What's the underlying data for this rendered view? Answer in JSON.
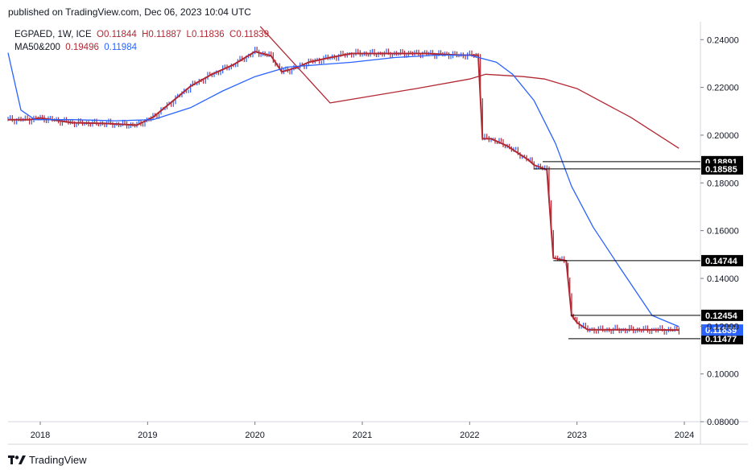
{
  "header": {
    "published": "published on TradingView.com, Dec 06, 2023 10:04 UTC"
  },
  "legend": {
    "symbol": "EGPAED, 1W, ICE",
    "open_label": "O",
    "open": "0.11844",
    "high_label": "H",
    "high": "0.11887",
    "low_label": "L",
    "low": "0.11836",
    "close_label": "C",
    "close": "0.11839",
    "ma_label": "MA50&200",
    "ma50": "0.19496",
    "ma200": "0.11984"
  },
  "footer": {
    "brand": "TradingView"
  },
  "colors": {
    "down": "#b22833",
    "up": "#2962ff",
    "ma50": "#b22833",
    "ma200": "#2962ff",
    "tag": "#000000",
    "last_tag": "#2962ff"
  },
  "chart_data": {
    "type": "line",
    "title": "EGPAED, 1W, ICE",
    "xlabel": "",
    "ylabel": "",
    "xlim": [
      2017.7,
      2024.15
    ],
    "ylim": [
      0.08,
      0.2475
    ],
    "x_ticks": [
      2018,
      2019,
      2020,
      2021,
      2022,
      2023,
      2024
    ],
    "x_tick_labels": [
      "2018",
      "2019",
      "2020",
      "2021",
      "2022",
      "2023",
      "2024"
    ],
    "y_ticks": [
      0.08,
      0.1,
      0.12,
      0.14,
      0.16,
      0.18,
      0.2,
      0.22,
      0.24
    ],
    "y_tick_labels": [
      "0.08000",
      "0.10000",
      "0.12000",
      "0.14000",
      "0.16000",
      "0.18000",
      "0.20000",
      "0.22000",
      "0.24000"
    ],
    "series": [
      {
        "name": "Price (weekly close)",
        "x": [
          2017.7,
          2017.9,
          2018.0,
          2018.3,
          2018.6,
          2018.9,
          2019.05,
          2019.2,
          2019.4,
          2019.6,
          2019.8,
          2020.0,
          2020.15,
          2020.25,
          2020.4,
          2020.5,
          2020.7,
          2020.9,
          2021.0,
          2021.3,
          2021.6,
          2021.9,
          2022.08,
          2022.12,
          2022.2,
          2022.35,
          2022.55,
          2022.6,
          2022.72,
          2022.78,
          2022.9,
          2022.95,
          2023.0,
          2023.1,
          2023.3,
          2023.6,
          2023.95
        ],
        "values": [
          0.2065,
          0.2065,
          0.2072,
          0.2052,
          0.2049,
          0.2042,
          0.2075,
          0.213,
          0.2205,
          0.2255,
          0.2295,
          0.235,
          0.2332,
          0.2265,
          0.2285,
          0.2305,
          0.2325,
          0.2342,
          0.2342,
          0.2342,
          0.2342,
          0.2335,
          0.2335,
          0.1985,
          0.1985,
          0.1955,
          0.1895,
          0.1875,
          0.1855,
          0.1485,
          0.1474,
          0.1245,
          0.1215,
          0.1185,
          0.1185,
          0.1185,
          0.1184
        ]
      },
      {
        "name": "MA50",
        "x": [
          2020.05,
          2020.7,
          2021.5,
          2022.0,
          2022.15,
          2022.5,
          2022.7,
          2023.0,
          2023.5,
          2023.95
        ],
        "values": [
          0.2455,
          0.2135,
          0.2195,
          0.2235,
          0.2255,
          0.2245,
          0.2235,
          0.2195,
          0.2075,
          0.1945
        ]
      },
      {
        "name": "MA200",
        "x": [
          2017.7,
          2017.82,
          2017.95,
          2018.3,
          2018.7,
          2019.05,
          2019.4,
          2019.7,
          2020.0,
          2020.3,
          2020.6,
          2020.9,
          2021.3,
          2021.7,
          2022.0,
          2022.25,
          2022.4,
          2022.6,
          2022.8,
          2022.95,
          2023.15,
          2023.4,
          2023.7,
          2023.95
        ],
        "values": [
          0.2345,
          0.2105,
          0.2065,
          0.2065,
          0.206,
          0.2065,
          0.2115,
          0.2185,
          0.2245,
          0.2285,
          0.2295,
          0.2305,
          0.2325,
          0.2335,
          0.2335,
          0.2305,
          0.2255,
          0.2145,
          0.1965,
          0.1785,
          0.1615,
          0.1445,
          0.1245,
          0.1198
        ]
      }
    ],
    "price_tags": [
      {
        "label": "0.18891",
        "value": 0.18891,
        "line_from": 2022.68
      },
      {
        "label": "0.18585",
        "value": 0.18585,
        "line_from": 2022.6
      },
      {
        "label": "0.14744",
        "value": 0.14744,
        "line_from": 2022.78
      },
      {
        "label": "0.12454",
        "value": 0.12454,
        "line_from": 2022.94
      },
      {
        "label": "0.11477",
        "value": 0.11477,
        "line_from": 2022.92
      }
    ],
    "last_price": {
      "label": "0.11839",
      "value": 0.11839
    }
  }
}
